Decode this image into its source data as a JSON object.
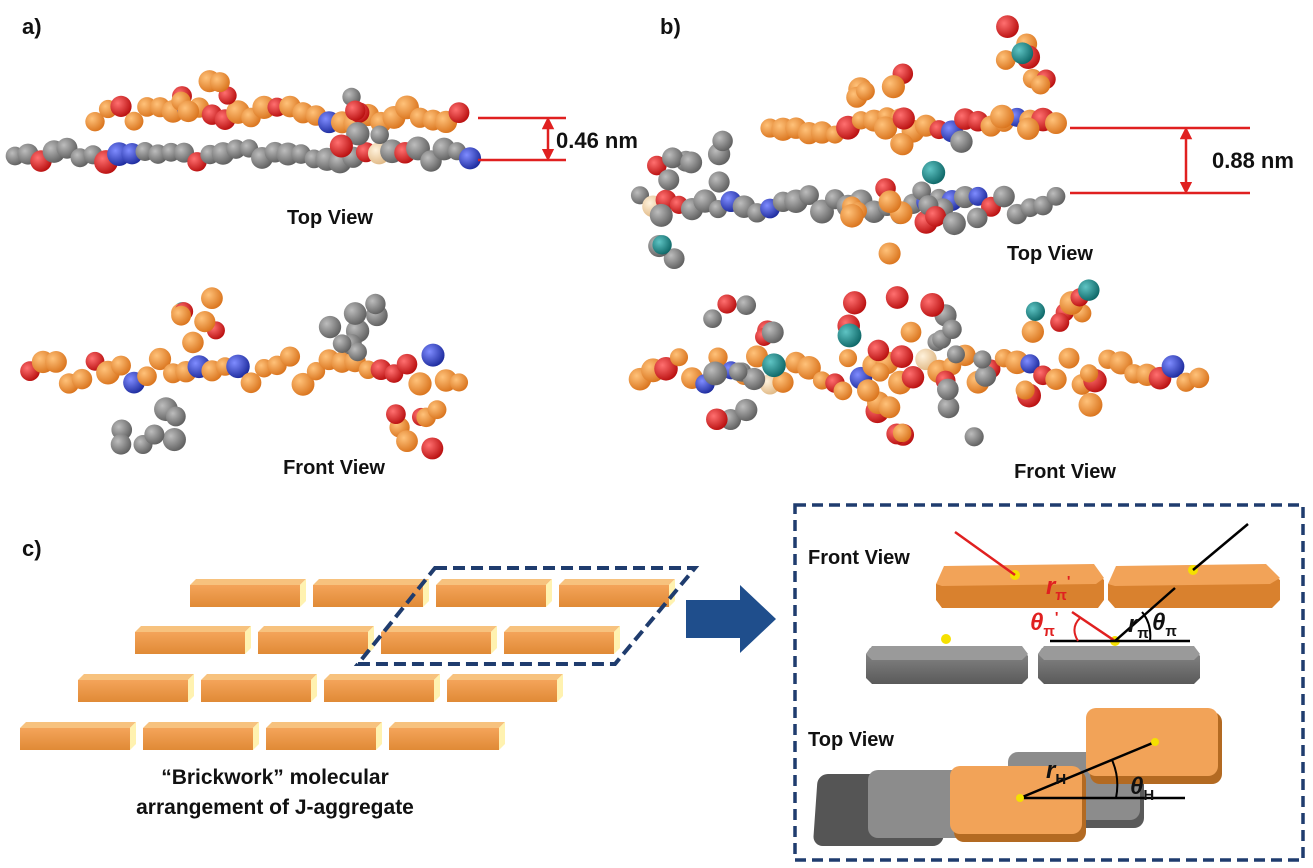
{
  "panels": {
    "a": {
      "label": "a)",
      "spacing": "0.46 nm",
      "top_view": "Top View",
      "front_view": "Front View"
    },
    "b": {
      "label": "b)",
      "spacing": "0.88 nm",
      "top_view": "Top View",
      "front_view": "Front View"
    },
    "c": {
      "label": "c)",
      "caption": [
        "“Brickwork” molecular",
        "arrangement of J-aggregate"
      ],
      "inset": {
        "front_view": "Front View",
        "top_view": "Top View",
        "r_pi_prime": {
          "symbol": "r",
          "sub": "π",
          "prime": "'"
        },
        "r_pi": {
          "symbol": "r",
          "sub": "π"
        },
        "theta_pi_prime": {
          "symbol": "θ",
          "sub": "π",
          "prime": "'"
        },
        "theta_pi": {
          "symbol": "θ",
          "sub": "π"
        },
        "r_h": {
          "symbol": "r",
          "sub": "H"
        },
        "theta_h": {
          "symbol": "θ",
          "sub": "H"
        }
      }
    }
  }
}
